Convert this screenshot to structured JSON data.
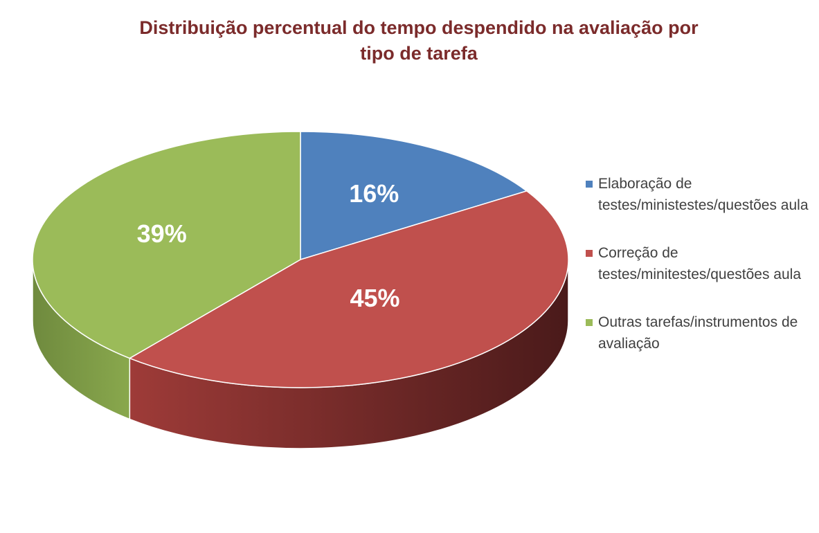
{
  "chart_data": {
    "type": "pie",
    "title_lines": [
      "Distribuição percentual do tempo despendido na avaliação por",
      "tipo de tarefa"
    ],
    "slices": [
      {
        "name": "Elaboração de testes/ministestes/questões aula",
        "value": 16,
        "label": "16%",
        "color": "#4f81bd",
        "side_color": "#385d8a"
      },
      {
        "name": "Correção de testes/minitestes/questões aula",
        "value": 45,
        "label": "45%",
        "color": "#c0504d",
        "side_color": "#8c3330"
      },
      {
        "name": "Outras tarefas/instrumentos de avaliação",
        "value": 39,
        "label": "39%",
        "color": "#9bbb59",
        "side_color": "#76923c"
      }
    ],
    "legend_position": "right",
    "three_d": true
  }
}
